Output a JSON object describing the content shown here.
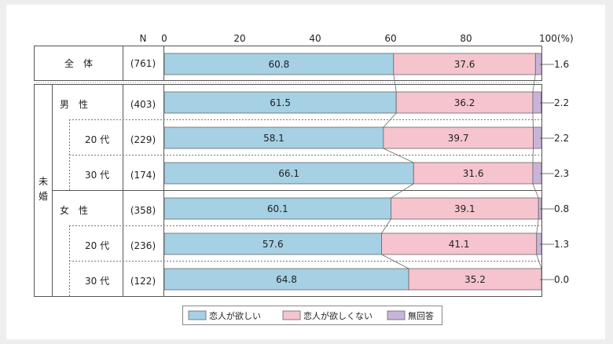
{
  "chart_data": {
    "type": "bar",
    "stacked": true,
    "orientation": "horizontal",
    "n_header": "N",
    "axis_ticks": [
      "0",
      "20",
      "40",
      "60",
      "80",
      "100(%)"
    ],
    "xlim": [
      0,
      100
    ],
    "group_label": [
      "未",
      "婚"
    ],
    "rows": [
      {
        "label": "全　体",
        "n": "(761)",
        "values": [
          60.8,
          37.6,
          1.6
        ]
      },
      {
        "label": "男　性",
        "n": "(403)",
        "values": [
          61.5,
          36.2,
          2.2
        ]
      },
      {
        "label": "20 代",
        "n": "(229)",
        "values": [
          58.1,
          39.7,
          2.2
        ]
      },
      {
        "label": "30 代",
        "n": "(174)",
        "values": [
          66.1,
          31.6,
          2.3
        ]
      },
      {
        "label": "女　性",
        "n": "(358)",
        "values": [
          60.1,
          39.1,
          0.8
        ]
      },
      {
        "label": "20 代",
        "n": "(236)",
        "values": [
          57.6,
          41.1,
          1.3
        ]
      },
      {
        "label": "30 代",
        "n": "(122)",
        "values": [
          64.8,
          35.2,
          0.0
        ]
      }
    ],
    "data_labels": [
      [
        "60.8",
        "37.6",
        "1.6"
      ],
      [
        "61.5",
        "36.2",
        "2.2"
      ],
      [
        "58.1",
        "39.7",
        "2.2"
      ],
      [
        "66.1",
        "31.6",
        "2.3"
      ],
      [
        "60.1",
        "39.1",
        "0.8"
      ],
      [
        "57.6",
        "41.1",
        "1.3"
      ],
      [
        "64.8",
        "35.2",
        "0.0"
      ]
    ],
    "series": [
      {
        "name": "恋人が欲しい",
        "color": "#a6d0e4"
      },
      {
        "name": "恋人が欲しくない",
        "color": "#f5c4cf"
      },
      {
        "name": "無回答",
        "color": "#c9b4d9"
      }
    ],
    "legend_position": "bottom-center"
  }
}
